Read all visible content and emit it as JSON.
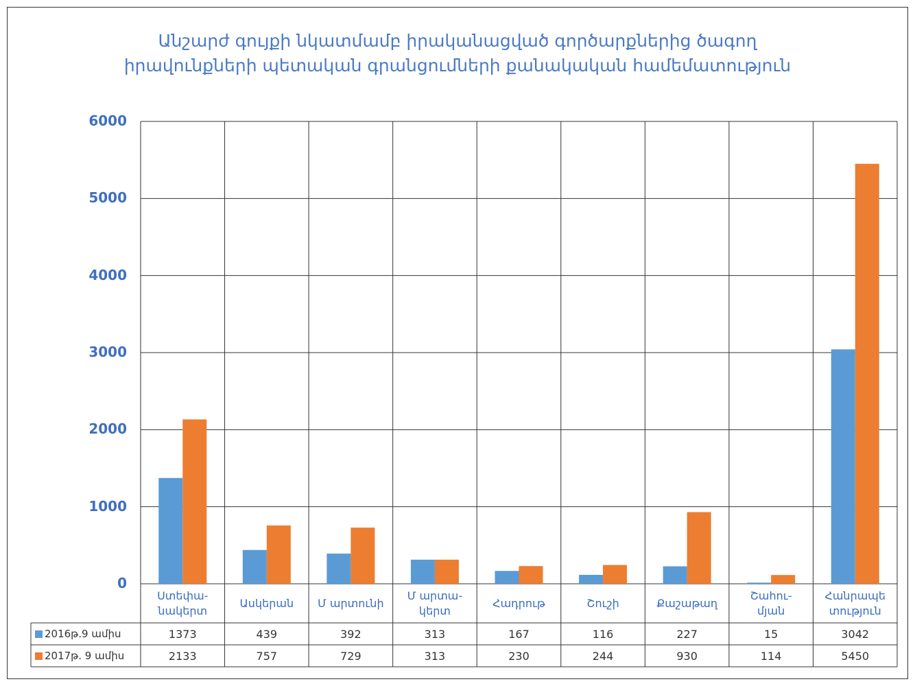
{
  "chart_data": {
    "type": "bar",
    "title": "Անշարժ գույքի նկատմամբ իրականացված  գործարքներից  ծագող\nիրավունքների պետական գրանցումների քանակական համեմատություն",
    "categories": [
      "Ստեփա-\nնակերտ",
      "Ասկերան",
      "Մ արտունի",
      "Մ արտա-\nկերտ",
      "Հադրութ",
      "Շուշի",
      "Քաշաթաղ",
      "Շահու-\nմյան",
      "Հանրապե\nտություն"
    ],
    "series": [
      {
        "name": "2016թ.9 ամիս",
        "color": "#5b9bd5",
        "values": [
          1373,
          439,
          392,
          313,
          167,
          116,
          227,
          15,
          3042
        ]
      },
      {
        "name": "2017թ. 9 ամիս",
        "color": "#ed7d31",
        "values": [
          2133,
          757,
          729,
          313,
          230,
          244,
          930,
          114,
          5450
        ]
      }
    ],
    "ylim": [
      0,
      6000
    ],
    "yticks": [
      0,
      1000,
      2000,
      3000,
      4000,
      5000,
      6000
    ],
    "grid": true
  }
}
